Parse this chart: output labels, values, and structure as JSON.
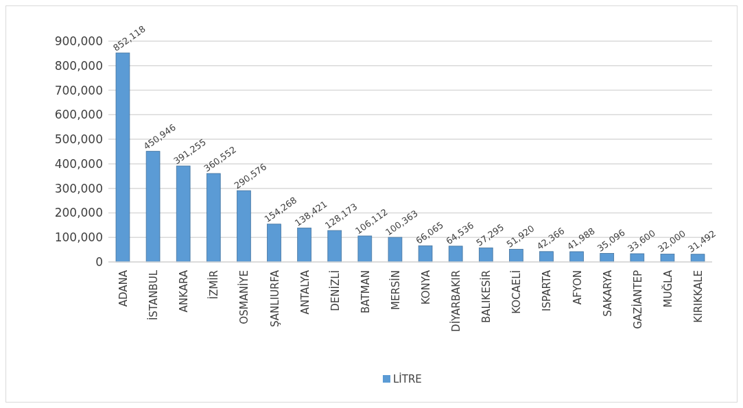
{
  "chart_data": {
    "type": "bar",
    "categories": [
      "ADANA",
      "İSTANBUL",
      "ANKARA",
      "İZMİR",
      "OSMANİYE",
      "ŞANLIURFA",
      "ANTALYA",
      "DENİZLİ",
      "BATMAN",
      "MERSİN",
      "KONYA",
      "DİYARBAKIR",
      "BALIKESİR",
      "KOCAELİ",
      "ISPARTA",
      "AFYON",
      "SAKARYA",
      "GAZİANTEP",
      "MUĞLA",
      "KIRIKKALE"
    ],
    "series": [
      {
        "name": "LİTRE",
        "color": "#5b9bd5",
        "values": [
          852118,
          450946,
          391255,
          360552,
          290576,
          154268,
          138421,
          128173,
          106112,
          100363,
          66065,
          64536,
          57295,
          51920,
          42366,
          41988,
          35096,
          33600,
          32000,
          31492
        ],
        "value_labels": [
          "852,118",
          "450,946",
          "391,255",
          "360,552",
          "290,576",
          "154,268",
          "138,421",
          "128,173",
          "106,112",
          "100,363",
          "66,065",
          "64,536",
          "57,295",
          "51,920",
          "42,366",
          "41,988",
          "35,096",
          "33,600",
          "32,000",
          "31,492"
        ]
      }
    ],
    "ylim": [
      0,
      900000
    ],
    "yticks": [
      {
        "value": 0,
        "label": "0"
      },
      {
        "value": 100000,
        "label": "100,000"
      },
      {
        "value": 200000,
        "label": "200,000"
      },
      {
        "value": 300000,
        "label": "300,000"
      },
      {
        "value": 400000,
        "label": "400,000"
      },
      {
        "value": 500000,
        "label": "500,000"
      },
      {
        "value": 600000,
        "label": "600,000"
      },
      {
        "value": 700000,
        "label": "700,000"
      },
      {
        "value": 800000,
        "label": "800,000"
      },
      {
        "value": 900000,
        "label": "900,000"
      }
    ],
    "grid": "y",
    "legend": "bottom"
  }
}
